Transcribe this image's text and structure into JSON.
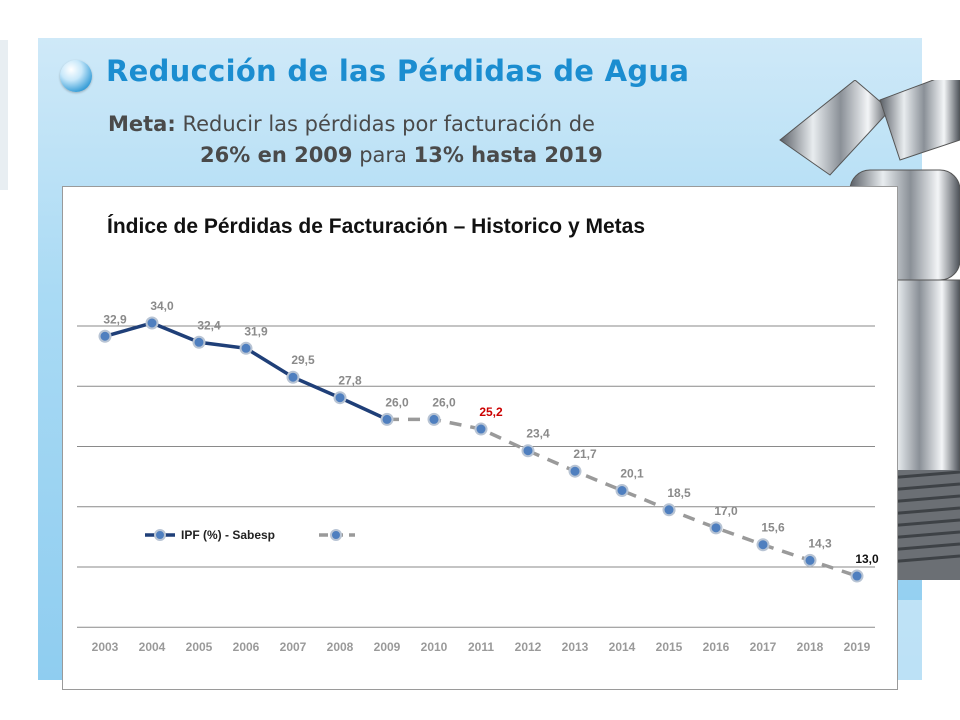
{
  "header": {
    "title": "Reducción de las Pérdidas de Agua",
    "meta_label": "Meta:",
    "meta_text": "Reducir las pérdidas por facturación de",
    "line2_a": "26% en 2009",
    "line2_b": "para",
    "line2_c": "13% hasta 2019"
  },
  "colors": {
    "title_blue": "#1b8dd0",
    "historic_line": "#1f3f78",
    "target_line": "#9a9a9a",
    "marker_fill": "#4f7fbf",
    "highlight_label": "#cc0000"
  },
  "chart_data": {
    "type": "line",
    "title": "Índice de Pérdidas de Facturación – Historico y Metas",
    "xlabel": "",
    "ylabel": "",
    "grid": true,
    "legend_position": "bottom-left",
    "categories": [
      "2003",
      "2004",
      "2005",
      "2006",
      "2007",
      "2008",
      "2009",
      "2010",
      "2011",
      "2012",
      "2013",
      "2014",
      "2015",
      "2016",
      "2017",
      "2018",
      "2019"
    ],
    "series": [
      {
        "name": "IPF (%) - Sabesp",
        "style": "solid",
        "x": [
          "2003",
          "2004",
          "2005",
          "2006",
          "2007",
          "2008",
          "2009"
        ],
        "values": [
          32.9,
          34.0,
          32.4,
          31.9,
          29.5,
          27.8,
          26.0
        ]
      },
      {
        "name": "",
        "style": "dashed",
        "x": [
          "2009",
          "2010",
          "2011",
          "2012",
          "2013",
          "2014",
          "2015",
          "2016",
          "2017",
          "2018",
          "2019"
        ],
        "values": [
          26.0,
          26.0,
          25.2,
          23.4,
          21.7,
          20.1,
          18.5,
          17.0,
          15.6,
          14.3,
          13.0
        ]
      }
    ],
    "point_labels": [
      {
        "x": "2003",
        "text": "32,9"
      },
      {
        "x": "2004",
        "text": "34,0"
      },
      {
        "x": "2005",
        "text": "32,4"
      },
      {
        "x": "2006",
        "text": "31,9"
      },
      {
        "x": "2007",
        "text": "29,5"
      },
      {
        "x": "2008",
        "text": "27,8"
      },
      {
        "x": "2009",
        "text": "26,0"
      },
      {
        "x": "2010",
        "text": "26,0"
      },
      {
        "x": "2011",
        "text": "25,2",
        "highlight": true
      },
      {
        "x": "2012",
        "text": "23,4"
      },
      {
        "x": "2013",
        "text": "21,7"
      },
      {
        "x": "2014",
        "text": "20,1"
      },
      {
        "x": "2015",
        "text": "18,5"
      },
      {
        "x": "2016",
        "text": "17,0"
      },
      {
        "x": "2017",
        "text": "15,6"
      },
      {
        "x": "2018",
        "text": "14,3"
      },
      {
        "x": "2019",
        "text": "13,0",
        "emphasis": true
      }
    ],
    "ylim": [
      8,
      36
    ],
    "grid_values": [
      35,
      30,
      25,
      20,
      15,
      10
    ]
  }
}
